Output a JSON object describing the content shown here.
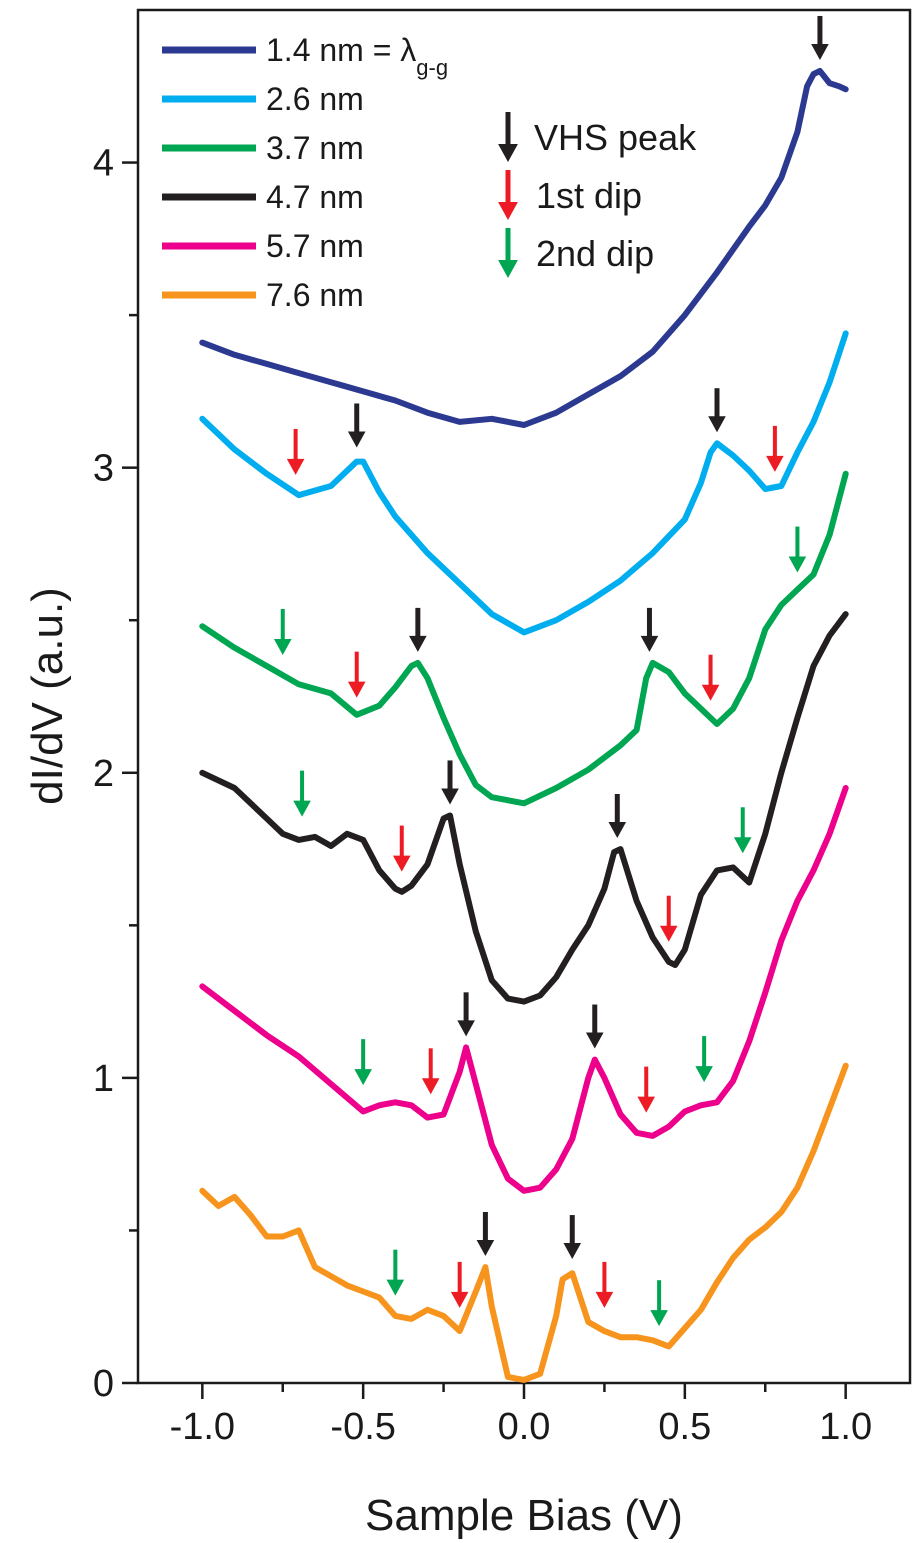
{
  "chart_data": {
    "type": "line",
    "title": "",
    "xlabel": "Sample Bias (V)",
    "ylabel": "dI/dV (a.u.)",
    "xlim": [
      -1.2,
      1.2
    ],
    "ylim": [
      0,
      4.5
    ],
    "x_ticks": [
      -1.0,
      -0.5,
      0.0,
      0.5,
      1.0
    ],
    "x_tick_labels": [
      "-1.0",
      "-0.5",
      "0.0",
      "0.5",
      "1.0"
    ],
    "x_minor_ticks": [
      -0.75,
      -0.25,
      0.25,
      0.75
    ],
    "y_ticks": [
      0,
      1,
      2,
      3,
      4
    ],
    "y_tick_labels": [
      "0",
      "1",
      "2",
      "3",
      "4"
    ],
    "y_minor_ticks": [
      0.5,
      1.5,
      2.5,
      3.5
    ],
    "grid": false,
    "legend_position": "top-left",
    "series": [
      {
        "name": "1.4 nm = λ",
        "name_subscript": "g-g",
        "color": "#2b3990",
        "x": [
          -1.0,
          -0.9,
          -0.8,
          -0.7,
          -0.6,
          -0.5,
          -0.4,
          -0.3,
          -0.2,
          -0.1,
          0.0,
          0.1,
          0.2,
          0.3,
          0.4,
          0.5,
          0.6,
          0.7,
          0.75,
          0.8,
          0.85,
          0.88,
          0.9,
          0.92,
          0.95,
          0.98,
          1.0
        ],
        "y": [
          3.41,
          3.37,
          3.34,
          3.31,
          3.28,
          3.25,
          3.22,
          3.18,
          3.15,
          3.16,
          3.14,
          3.18,
          3.24,
          3.3,
          3.38,
          3.5,
          3.64,
          3.79,
          3.86,
          3.95,
          4.1,
          4.25,
          4.29,
          4.3,
          4.26,
          4.25,
          4.24
        ]
      },
      {
        "name": "2.6 nm",
        "color": "#00aeef",
        "x": [
          -1.0,
          -0.9,
          -0.8,
          -0.7,
          -0.6,
          -0.55,
          -0.52,
          -0.5,
          -0.45,
          -0.4,
          -0.3,
          -0.2,
          -0.1,
          0.0,
          0.1,
          0.2,
          0.3,
          0.4,
          0.5,
          0.55,
          0.58,
          0.6,
          0.65,
          0.7,
          0.75,
          0.8,
          0.85,
          0.9,
          0.95,
          1.0
        ],
        "y": [
          3.16,
          3.06,
          2.98,
          2.91,
          2.94,
          2.99,
          3.02,
          3.02,
          2.92,
          2.84,
          2.72,
          2.62,
          2.52,
          2.46,
          2.5,
          2.56,
          2.63,
          2.72,
          2.83,
          2.95,
          3.05,
          3.08,
          3.04,
          2.99,
          2.93,
          2.94,
          3.05,
          3.15,
          3.28,
          3.44
        ]
      },
      {
        "name": "3.7 nm",
        "color": "#00a651",
        "x": [
          -1.0,
          -0.9,
          -0.8,
          -0.7,
          -0.6,
          -0.52,
          -0.45,
          -0.4,
          -0.35,
          -0.33,
          -0.3,
          -0.25,
          -0.2,
          -0.15,
          -0.1,
          0.0,
          0.1,
          0.2,
          0.3,
          0.35,
          0.38,
          0.4,
          0.45,
          0.5,
          0.55,
          0.6,
          0.65,
          0.7,
          0.75,
          0.8,
          0.85,
          0.9,
          0.95,
          1.0
        ],
        "y": [
          2.48,
          2.41,
          2.35,
          2.29,
          2.26,
          2.19,
          2.22,
          2.28,
          2.35,
          2.36,
          2.31,
          2.18,
          2.06,
          1.96,
          1.92,
          1.9,
          1.95,
          2.01,
          2.09,
          2.14,
          2.31,
          2.36,
          2.33,
          2.26,
          2.21,
          2.16,
          2.21,
          2.31,
          2.47,
          2.55,
          2.6,
          2.65,
          2.78,
          2.98
        ]
      },
      {
        "name": "4.7 nm",
        "color": "#231f20",
        "x": [
          -1.0,
          -0.9,
          -0.8,
          -0.75,
          -0.7,
          -0.65,
          -0.6,
          -0.55,
          -0.5,
          -0.45,
          -0.4,
          -0.38,
          -0.35,
          -0.3,
          -0.25,
          -0.23,
          -0.2,
          -0.15,
          -0.1,
          -0.05,
          0.0,
          0.05,
          0.1,
          0.15,
          0.2,
          0.25,
          0.28,
          0.3,
          0.35,
          0.4,
          0.45,
          0.47,
          0.5,
          0.55,
          0.6,
          0.65,
          0.7,
          0.75,
          0.8,
          0.85,
          0.9,
          0.95,
          1.0
        ],
        "y": [
          2.0,
          1.95,
          1.85,
          1.8,
          1.78,
          1.79,
          1.76,
          1.8,
          1.78,
          1.68,
          1.62,
          1.61,
          1.63,
          1.7,
          1.85,
          1.86,
          1.7,
          1.48,
          1.32,
          1.26,
          1.25,
          1.27,
          1.33,
          1.42,
          1.5,
          1.62,
          1.74,
          1.75,
          1.58,
          1.46,
          1.38,
          1.37,
          1.42,
          1.6,
          1.68,
          1.69,
          1.64,
          1.8,
          2.0,
          2.18,
          2.35,
          2.45,
          2.52
        ]
      },
      {
        "name": "5.7 nm",
        "color": "#ec008c",
        "x": [
          -1.0,
          -0.9,
          -0.8,
          -0.7,
          -0.6,
          -0.5,
          -0.45,
          -0.4,
          -0.35,
          -0.3,
          -0.25,
          -0.2,
          -0.18,
          -0.15,
          -0.1,
          -0.05,
          0.0,
          0.05,
          0.1,
          0.15,
          0.2,
          0.22,
          0.25,
          0.3,
          0.35,
          0.4,
          0.45,
          0.5,
          0.55,
          0.6,
          0.65,
          0.7,
          0.75,
          0.8,
          0.85,
          0.9,
          0.95,
          1.0
        ],
        "y": [
          1.3,
          1.22,
          1.14,
          1.07,
          0.98,
          0.89,
          0.91,
          0.92,
          0.91,
          0.87,
          0.88,
          1.02,
          1.1,
          0.98,
          0.78,
          0.67,
          0.63,
          0.64,
          0.7,
          0.8,
          1.0,
          1.06,
          1.0,
          0.88,
          0.82,
          0.81,
          0.84,
          0.89,
          0.91,
          0.92,
          0.99,
          1.12,
          1.28,
          1.45,
          1.58,
          1.68,
          1.8,
          1.95
        ]
      },
      {
        "name": "7.6 nm",
        "color": "#f7941d",
        "x": [
          -1.0,
          -0.95,
          -0.9,
          -0.85,
          -0.8,
          -0.75,
          -0.7,
          -0.65,
          -0.6,
          -0.55,
          -0.5,
          -0.45,
          -0.4,
          -0.35,
          -0.3,
          -0.25,
          -0.2,
          -0.15,
          -0.12,
          -0.1,
          -0.05,
          0.0,
          0.05,
          0.1,
          0.12,
          0.15,
          0.2,
          0.25,
          0.3,
          0.35,
          0.4,
          0.45,
          0.5,
          0.55,
          0.6,
          0.65,
          0.7,
          0.75,
          0.8,
          0.85,
          0.9,
          0.95,
          1.0
        ],
        "y": [
          0.63,
          0.58,
          0.61,
          0.55,
          0.48,
          0.48,
          0.5,
          0.38,
          0.35,
          0.32,
          0.3,
          0.28,
          0.22,
          0.21,
          0.24,
          0.22,
          0.17,
          0.3,
          0.38,
          0.25,
          0.02,
          0.01,
          0.03,
          0.22,
          0.34,
          0.36,
          0.2,
          0.17,
          0.15,
          0.15,
          0.14,
          0.12,
          0.18,
          0.24,
          0.33,
          0.41,
          0.47,
          0.51,
          0.56,
          0.64,
          0.76,
          0.9,
          1.04
        ]
      }
    ],
    "annotations": {
      "marker_legend": [
        {
          "label": "VHS peak",
          "color": "#231f20"
        },
        {
          "label": "1st dip",
          "color": "#ed1c24"
        },
        {
          "label": "2nd dip",
          "color": "#00a651"
        }
      ],
      "arrows": [
        {
          "kind": "peak",
          "color": "#231f20",
          "x": 0.92,
          "y": 4.31
        },
        {
          "kind": "peak",
          "color": "#231f20",
          "x": -0.52,
          "y": 3.04
        },
        {
          "kind": "peak",
          "color": "#231f20",
          "x": 0.6,
          "y": 3.09
        },
        {
          "kind": "peak",
          "color": "#231f20",
          "x": -0.33,
          "y": 2.37
        },
        {
          "kind": "peak",
          "color": "#231f20",
          "x": 0.39,
          "y": 2.37
        },
        {
          "kind": "peak",
          "color": "#231f20",
          "x": -0.23,
          "y": 1.87
        },
        {
          "kind": "peak",
          "color": "#231f20",
          "x": 0.29,
          "y": 1.76
        },
        {
          "kind": "peak",
          "color": "#231f20",
          "x": -0.18,
          "y": 1.11
        },
        {
          "kind": "peak",
          "color": "#231f20",
          "x": 0.22,
          "y": 1.07
        },
        {
          "kind": "peak",
          "color": "#231f20",
          "x": -0.12,
          "y": 0.39
        },
        {
          "kind": "peak",
          "color": "#231f20",
          "x": 0.15,
          "y": 0.38
        },
        {
          "kind": "dip1",
          "color": "#ed1c24",
          "x": -0.71,
          "y": 2.95
        },
        {
          "kind": "dip1",
          "color": "#ed1c24",
          "x": 0.78,
          "y": 2.96
        },
        {
          "kind": "dip1",
          "color": "#ed1c24",
          "x": -0.52,
          "y": 2.22
        },
        {
          "kind": "dip1",
          "color": "#ed1c24",
          "x": 0.58,
          "y": 2.21
        },
        {
          "kind": "dip1",
          "color": "#ed1c24",
          "x": -0.38,
          "y": 1.65
        },
        {
          "kind": "dip1",
          "color": "#ed1c24",
          "x": 0.45,
          "y": 1.42
        },
        {
          "kind": "dip1",
          "color": "#ed1c24",
          "x": -0.29,
          "y": 0.92
        },
        {
          "kind": "dip1",
          "color": "#ed1c24",
          "x": 0.38,
          "y": 0.86
        },
        {
          "kind": "dip1",
          "color": "#ed1c24",
          "x": -0.2,
          "y": 0.22
        },
        {
          "kind": "dip1",
          "color": "#ed1c24",
          "x": 0.25,
          "y": 0.22
        },
        {
          "kind": "dip2",
          "color": "#00a651",
          "x": -0.75,
          "y": 2.36
        },
        {
          "kind": "dip2",
          "color": "#00a651",
          "x": 0.85,
          "y": 2.63
        },
        {
          "kind": "dip2",
          "color": "#00a651",
          "x": -0.69,
          "y": 1.83
        },
        {
          "kind": "dip2",
          "color": "#00a651",
          "x": 0.68,
          "y": 1.71
        },
        {
          "kind": "dip2",
          "color": "#00a651",
          "x": -0.5,
          "y": 0.95
        },
        {
          "kind": "dip2",
          "color": "#00a651",
          "x": 0.56,
          "y": 0.96
        },
        {
          "kind": "dip2",
          "color": "#00a651",
          "x": -0.4,
          "y": 0.26
        },
        {
          "kind": "dip2",
          "color": "#00a651",
          "x": 0.42,
          "y": 0.16
        }
      ]
    }
  }
}
